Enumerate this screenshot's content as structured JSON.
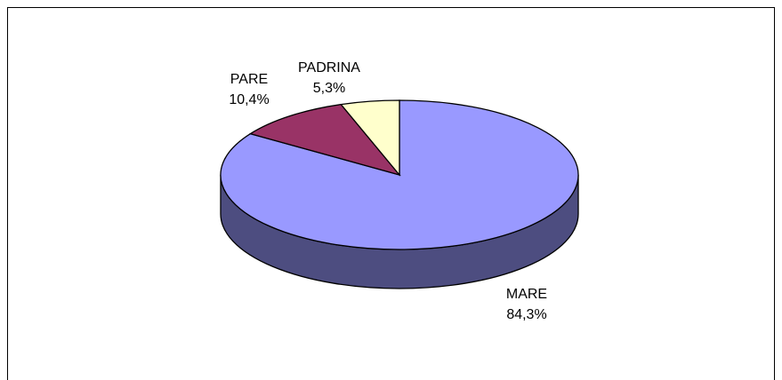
{
  "chart_data": {
    "type": "pie3d",
    "categories": [
      "MARE",
      "PARE",
      "PADRINA"
    ],
    "values": [
      84.3,
      10.4,
      5.3
    ],
    "value_labels": [
      "84,3%",
      "10,4%",
      "5,3%"
    ],
    "colors": [
      "#9999ff",
      "#993366",
      "#ffffcc"
    ],
    "side_colors": [
      "#4d4d80",
      "#4d1a33",
      "#80806a"
    ]
  }
}
